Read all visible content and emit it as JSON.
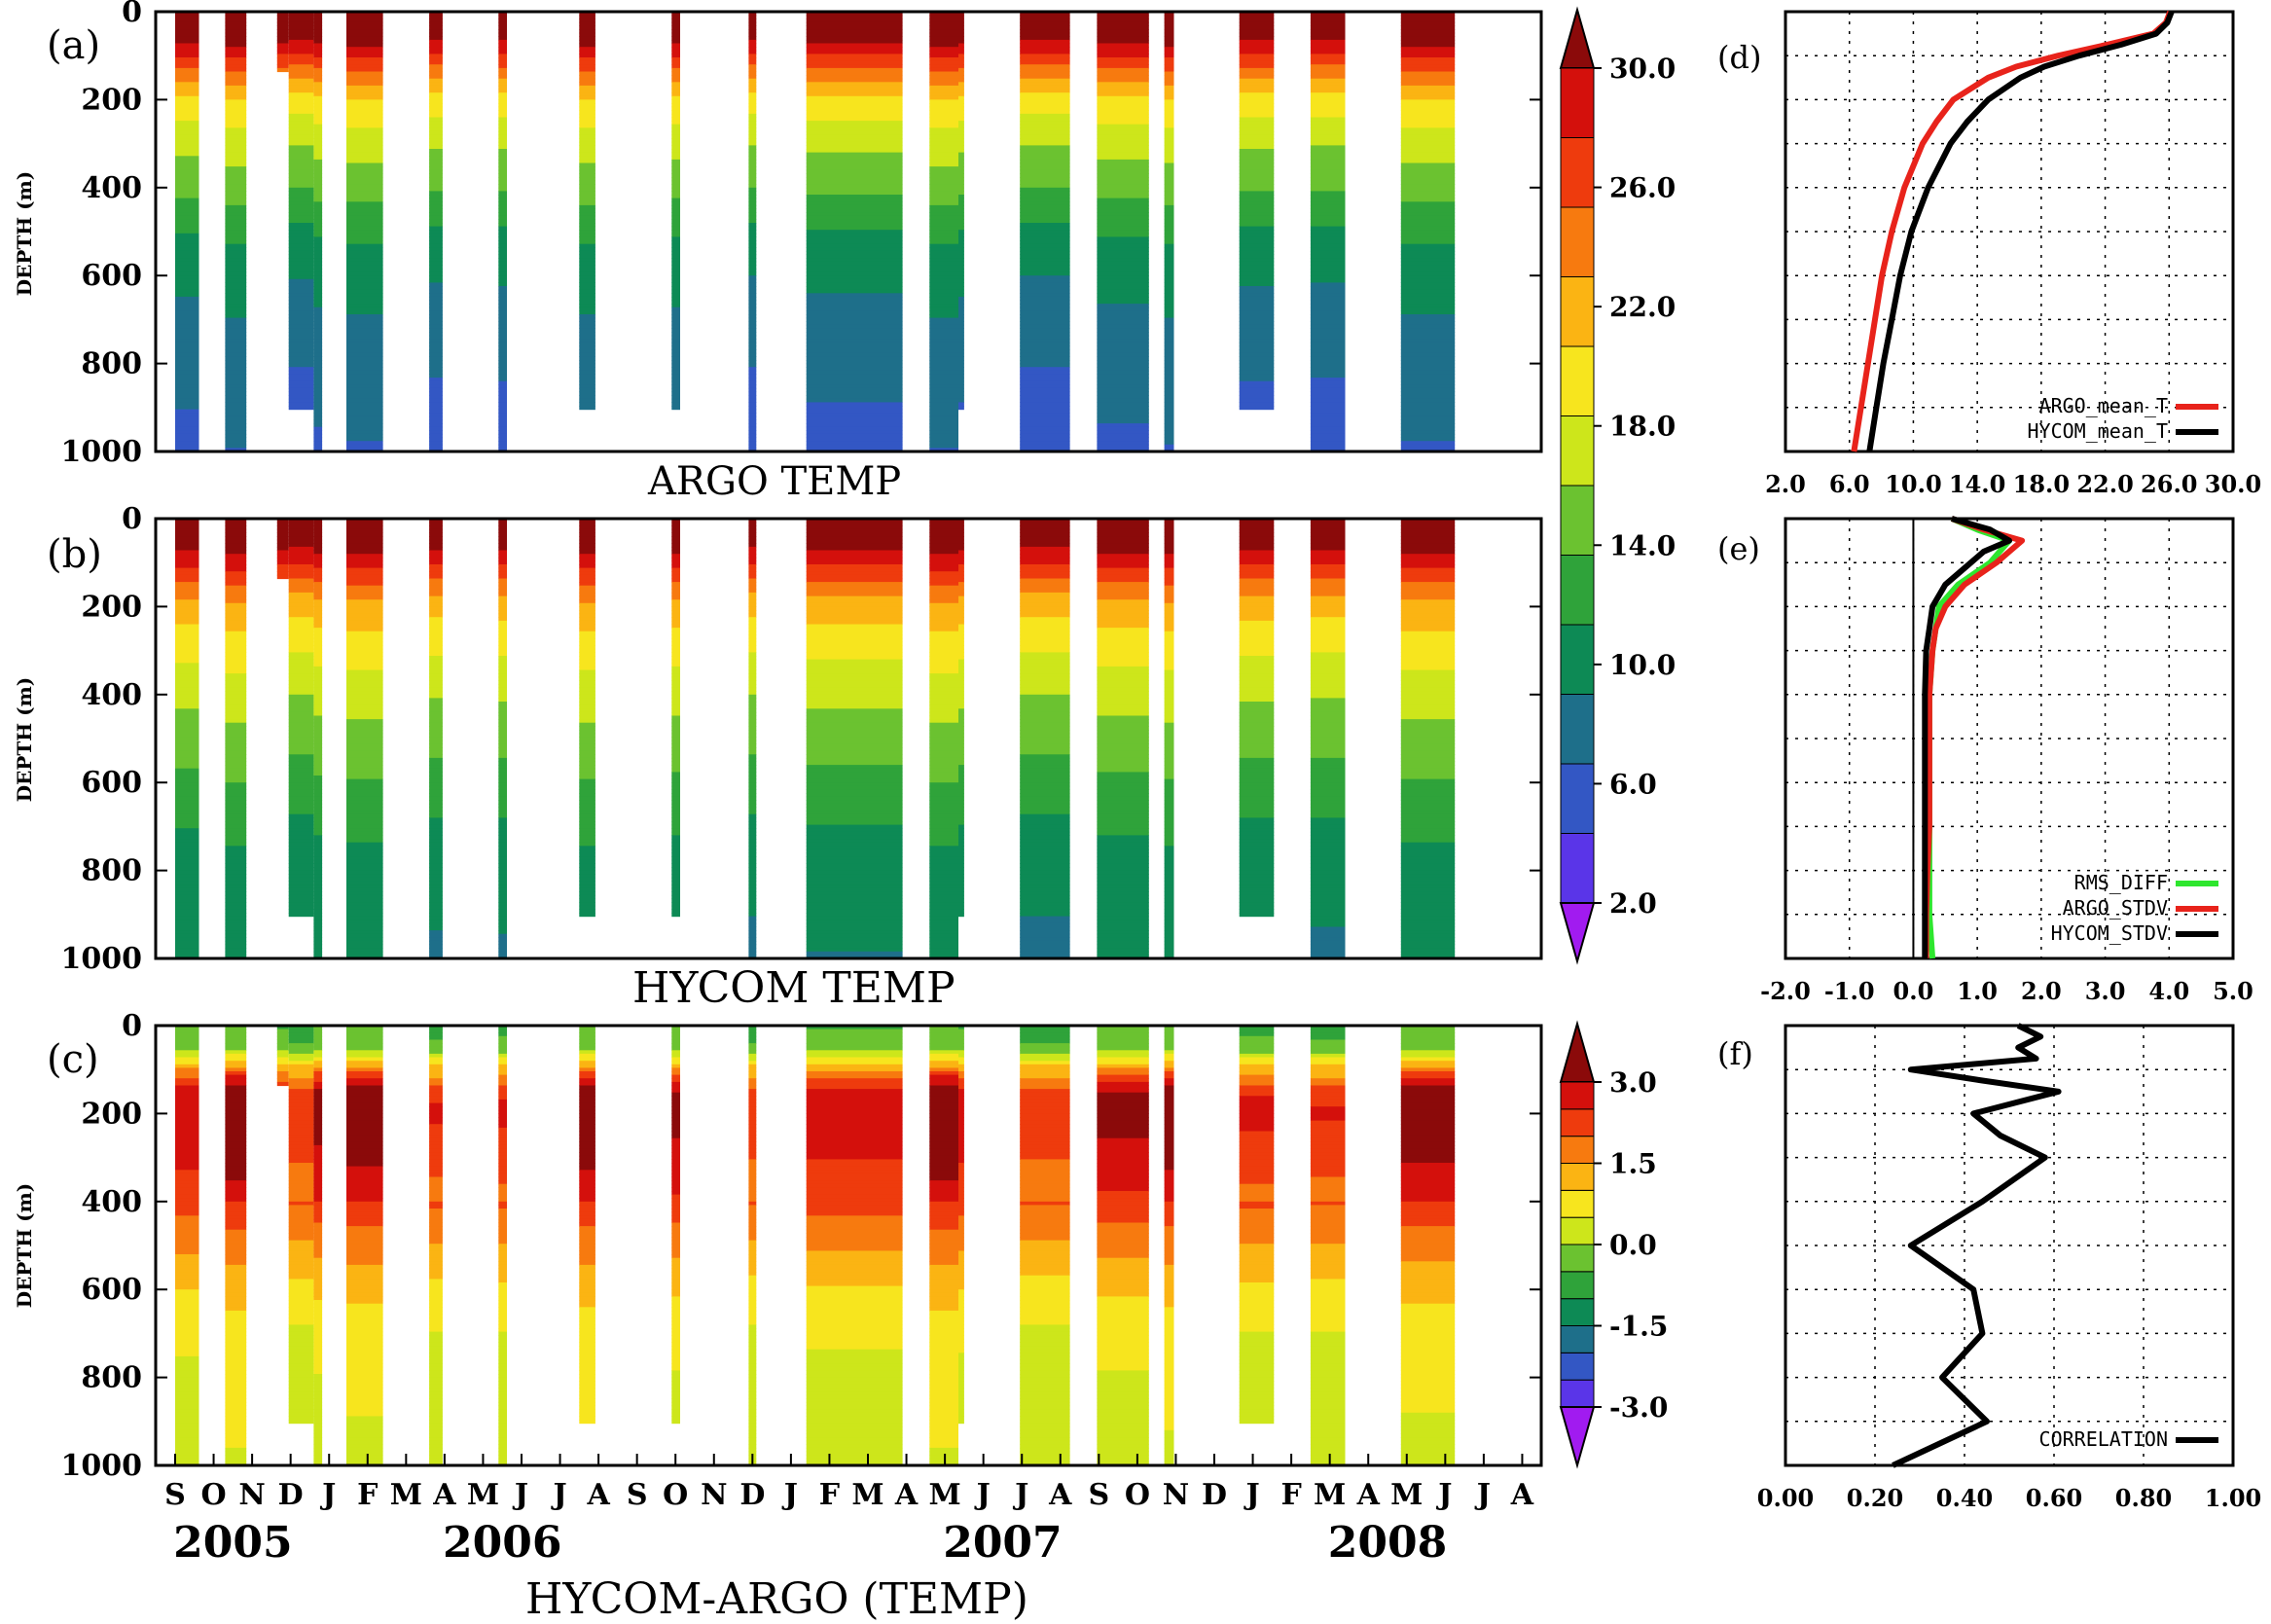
{
  "colors": {
    "temp_levels": [
      "#a11bf0",
      "#5a35e8",
      "#3357c4",
      "#1e6f8a",
      "#0d8a55",
      "#2fa33a",
      "#6bc230",
      "#cde61b",
      "#f7e51e",
      "#fbb413",
      "#f77a0f",
      "#ee3b0d",
      "#d4100c",
      "#8b0a0a"
    ],
    "diff_levels": [
      "#a11bf0",
      "#5a35e8",
      "#3357c4",
      "#1e6f8a",
      "#0d8a55",
      "#2fa33a",
      "#6bc230",
      "#cde61b",
      "#f7e51e",
      "#fbb413",
      "#f77a0f",
      "#ee3b0d",
      "#d4100c",
      "#8b0a0a"
    ],
    "argo_line": "#e8231b",
    "hycom_line": "#000000",
    "rms_line": "#2ee62e",
    "corr_line": "#000000"
  },
  "chart_data": [
    {
      "panel": "(a)",
      "type": "heatmap",
      "title": "ARGO TEMP",
      "ylabel": "DEPTH (m)",
      "yticks": [
        "0",
        "200",
        "400",
        "600",
        "800",
        "1000"
      ],
      "ylim": [
        1000,
        0
      ],
      "depth_levels_m": [
        0,
        50,
        100,
        150,
        200,
        300,
        400,
        500,
        600,
        700,
        800,
        1000
      ],
      "profile_c": [
        29.5,
        27.5,
        24,
        20.5,
        17.5,
        14.5,
        12.5,
        10,
        8.5,
        7.5,
        6.5,
        5.5
      ]
    },
    {
      "panel": "(b)",
      "type": "heatmap",
      "title": "HYCOM TEMP",
      "ylabel": "DEPTH (m)",
      "yticks": [
        "0",
        "200",
        "400",
        "600",
        "800",
        "1000"
      ],
      "ylim": [
        1000,
        0
      ],
      "depth_levels_m": [
        0,
        50,
        100,
        150,
        200,
        300,
        400,
        500,
        600,
        700,
        800,
        1000
      ],
      "profile_c": [
        29.5,
        27.5,
        24.5,
        21.5,
        19,
        16.5,
        14.5,
        13,
        11.5,
        10,
        9,
        8
      ]
    },
    {
      "panel": "(c)",
      "type": "heatmap",
      "title": "HYCOM-ARGO (TEMP)",
      "ylabel": "DEPTH (m)",
      "yticks": [
        "0",
        "200",
        "400",
        "600",
        "800",
        "1000"
      ],
      "ylim": [
        1000,
        0
      ],
      "depth_levels_m": [
        0,
        50,
        100,
        150,
        200,
        300,
        400,
        500,
        600,
        700,
        800,
        1000
      ],
      "profile_diff": [
        -0.5,
        -0.3,
        1.5,
        2.8,
        3.0,
        2.6,
        2.2,
        1.6,
        1.0,
        0.6,
        0.4,
        0.3
      ],
      "months": [
        "S",
        "O",
        "N",
        "D",
        "J",
        "F",
        "M",
        "A",
        "M",
        "J",
        "J",
        "A",
        "S",
        "O",
        "N",
        "D",
        "J",
        "F",
        "M",
        "A",
        "M",
        "J",
        "J",
        "A",
        "S",
        "O",
        "N",
        "D",
        "J",
        "F",
        "M",
        "A",
        "M",
        "J",
        "J",
        "A"
      ],
      "years": [
        "2005",
        "2006",
        "2007",
        "2008"
      ],
      "data_columns": [
        {
          "start": 0.0,
          "end": 0.62,
          "max_depth": 1000
        },
        {
          "start": 1.3,
          "end": 1.85,
          "max_depth": 1000
        },
        {
          "start": 2.65,
          "end": 2.95,
          "max_depth": 130
        },
        {
          "start": 2.95,
          "end": 3.6,
          "max_depth": 900
        },
        {
          "start": 3.6,
          "end": 3.82,
          "max_depth": 1000
        },
        {
          "start": 4.45,
          "end": 5.4,
          "max_depth": 1000
        },
        {
          "start": 6.6,
          "end": 6.95,
          "max_depth": 1000
        },
        {
          "start": 8.4,
          "end": 8.62,
          "max_depth": 1000
        },
        {
          "start": 10.5,
          "end": 10.92,
          "max_depth": 900
        },
        {
          "start": 12.9,
          "end": 13.12,
          "max_depth": 900
        },
        {
          "start": 14.9,
          "end": 15.1,
          "max_depth": 1000
        },
        {
          "start": 16.4,
          "end": 18.9,
          "max_depth": 1000
        },
        {
          "start": 19.6,
          "end": 20.35,
          "max_depth": 1000
        },
        {
          "start": 20.35,
          "end": 20.5,
          "max_depth": 900
        },
        {
          "start": 21.95,
          "end": 23.25,
          "max_depth": 1000
        },
        {
          "start": 23.95,
          "end": 25.3,
          "max_depth": 1000
        },
        {
          "start": 25.7,
          "end": 25.95,
          "max_depth": 1000
        },
        {
          "start": 27.65,
          "end": 28.55,
          "max_depth": 900
        },
        {
          "start": 29.5,
          "end": 30.4,
          "max_depth": 1000
        },
        {
          "start": 31.85,
          "end": 33.25,
          "max_depth": 1000
        }
      ]
    },
    {
      "panel": "colorbar-temp",
      "type": "colorbar",
      "levels_labeled": [
        "2.0",
        "6.0",
        "10.0",
        "14.0",
        "18.0",
        "22.0",
        "26.0",
        "30.0"
      ],
      "range": [
        2,
        32
      ]
    },
    {
      "panel": "colorbar-diff",
      "type": "colorbar",
      "levels_labeled": [
        "-3.0",
        "-1.5",
        "0.0",
        "1.5",
        "3.0"
      ],
      "range": [
        -3,
        3
      ]
    },
    {
      "panel": "(d)",
      "type": "line",
      "xticks": [
        "2.0",
        "6.0",
        "10.0",
        "14.0",
        "18.0",
        "22.0",
        "26.0",
        "30.0"
      ],
      "xlim": [
        2,
        34
      ],
      "ylim": [
        1000,
        0
      ],
      "series": [
        {
          "name": "ARGO_mean_T",
          "depth": [
            0,
            25,
            50,
            75,
            100,
            125,
            150,
            200,
            250,
            300,
            400,
            500,
            600,
            700,
            800,
            900,
            1000
          ],
          "values": [
            29.5,
            29.2,
            28.3,
            25.0,
            21.5,
            18.5,
            16.5,
            14.0,
            12.8,
            11.8,
            10.5,
            9.6,
            8.9,
            8.4,
            7.9,
            7.4,
            6.9
          ]
        },
        {
          "name": "HYCOM_mean_T",
          "depth": [
            0,
            25,
            50,
            75,
            100,
            125,
            150,
            200,
            250,
            300,
            400,
            500,
            600,
            700,
            800,
            900,
            1000
          ],
          "values": [
            29.6,
            29.3,
            28.5,
            26.0,
            23.0,
            20.5,
            18.8,
            16.5,
            15.0,
            13.8,
            12.2,
            11.0,
            10.2,
            9.6,
            9.0,
            8.5,
            8.0
          ]
        }
      ]
    },
    {
      "panel": "(e)",
      "type": "line",
      "xticks": [
        "-2.0",
        "-1.0",
        "0.0",
        "1.0",
        "2.0",
        "3.0",
        "4.0",
        "5.0"
      ],
      "xlim": [
        -2,
        5
      ],
      "ylim": [
        1000,
        0
      ],
      "series": [
        {
          "name": "RMS_DIFF",
          "depth": [
            0,
            25,
            50,
            75,
            100,
            150,
            200,
            250,
            300,
            400,
            500,
            600,
            700,
            800,
            900,
            1000
          ],
          "values": [
            0.6,
            1.0,
            1.5,
            1.35,
            1.2,
            0.7,
            0.4,
            0.35,
            0.3,
            0.25,
            0.25,
            0.25,
            0.25,
            0.25,
            0.25,
            0.3
          ]
        },
        {
          "name": "ARGO_STDV",
          "depth": [
            0,
            25,
            50,
            75,
            100,
            150,
            200,
            250,
            300,
            400,
            500,
            600,
            700,
            800,
            900,
            1000
          ],
          "values": [
            0.6,
            1.1,
            1.7,
            1.5,
            1.3,
            0.8,
            0.5,
            0.35,
            0.3,
            0.25,
            0.25,
            0.25,
            0.25,
            0.22,
            0.2,
            0.2
          ]
        },
        {
          "name": "HYCOM_STDV",
          "depth": [
            0,
            25,
            50,
            75,
            100,
            150,
            200,
            250,
            300,
            400,
            500,
            600,
            700,
            800,
            900,
            1000
          ],
          "values": [
            0.6,
            1.2,
            1.5,
            1.1,
            0.9,
            0.5,
            0.3,
            0.25,
            0.2,
            0.18,
            0.18,
            0.18,
            0.18,
            0.18,
            0.18,
            0.18
          ]
        }
      ]
    },
    {
      "panel": "(f)",
      "type": "line",
      "xticks": [
        "0.00",
        "0.20",
        "0.40",
        "0.60",
        "0.80",
        "1.00"
      ],
      "xlim": [
        0,
        1
      ],
      "ylim": [
        1000,
        0
      ],
      "series": [
        {
          "name": "CORRELATION",
          "depth": [
            0,
            25,
            50,
            75,
            100,
            125,
            150,
            200,
            250,
            300,
            400,
            500,
            600,
            700,
            800,
            900,
            1000
          ],
          "values": [
            0.52,
            0.57,
            0.52,
            0.56,
            0.28,
            0.44,
            0.61,
            0.42,
            0.48,
            0.58,
            0.44,
            0.28,
            0.42,
            0.44,
            0.35,
            0.45,
            0.24
          ]
        }
      ]
    }
  ]
}
